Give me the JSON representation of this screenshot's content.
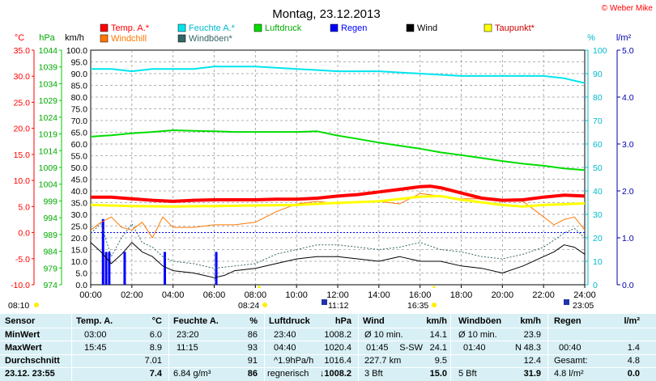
{
  "header": {
    "title": "Montag, 23.12.2013",
    "copyright": "© Weber Mike"
  },
  "colors": {
    "temp": "#ff0000",
    "humidity": "#00e5ee",
    "pressure": "#00dd00",
    "rain": "#0000ff",
    "wind": "#000000",
    "dewpoint": "#ffff00",
    "windchill": "#ff7700",
    "gust": "#336666"
  },
  "legend": [
    {
      "label": "Temp. A.*",
      "color": "#ff0000"
    },
    {
      "label": "Feuchte A.*",
      "color": "#00e5ee"
    },
    {
      "label": "Luftdruck",
      "color": "#00dd00"
    },
    {
      "label": "Regen",
      "color": "#0000ff"
    },
    {
      "label": "Wind",
      "color": "#000000"
    },
    {
      "label": "Taupunkt*",
      "color": "#ffff00"
    },
    {
      "label": "Windchill",
      "color": "#ff7700"
    },
    {
      "label": "Windböen*",
      "color": "#336666"
    }
  ],
  "chart_data": {
    "type": "line",
    "title": "Montag, 23.12.2013",
    "x_ticks": [
      "00:00",
      "02:00",
      "04:00",
      "06:00",
      "08:00",
      "10:00",
      "12:00",
      "14:00",
      "16:00",
      "18:00",
      "20:00",
      "22:00",
      "24:00"
    ],
    "xlim": [
      0,
      24
    ],
    "axes": {
      "temp": {
        "label": "°C",
        "ticks": [
          "35.0",
          "30.0",
          "25.0",
          "20.0",
          "15.0",
          "10.0",
          "5.0",
          "0.0",
          "-5.0",
          "-10.0"
        ],
        "ylim": [
          -10,
          35
        ]
      },
      "pressure": {
        "label": "hPa",
        "ticks": [
          "1044",
          "1039",
          "1034",
          "1029",
          "1024",
          "1019",
          "1014",
          "1009",
          "1004",
          "999",
          "994",
          "989",
          "984",
          "979",
          "974"
        ],
        "ylim": [
          974,
          1044
        ]
      },
      "wind": {
        "label": "km/h",
        "ticks": [
          "100.0",
          "95.0",
          "90.0",
          "85.0",
          "80.0",
          "75.0",
          "70.0",
          "65.0",
          "60.0",
          "55.0",
          "50.0",
          "45.0",
          "40.0",
          "35.0",
          "30.0",
          "25.0",
          "20.0",
          "15.0",
          "10.0",
          "5.0",
          "0.0"
        ],
        "ylim": [
          0,
          100
        ]
      },
      "humidity": {
        "label": "%",
        "ticks": [
          "100",
          "90",
          "80",
          "70",
          "60",
          "50",
          "40",
          "30",
          "20",
          "10",
          "0"
        ],
        "ylim": [
          0,
          100
        ]
      },
      "rain": {
        "label": "l/m²",
        "ticks": [
          "5.0",
          "4.0",
          "3.0",
          "2.0",
          "1.0",
          "0.0"
        ],
        "ylim": [
          0,
          5
        ]
      }
    },
    "series": [
      {
        "name": "Temp. A.*",
        "axis": "temp",
        "x": [
          0,
          1,
          2,
          3,
          4,
          5,
          6,
          7,
          8,
          9,
          10,
          11,
          12,
          13,
          14,
          15,
          16,
          16.5,
          17,
          18,
          19,
          20,
          21,
          22,
          23,
          24
        ],
        "values": [
          6.8,
          6.8,
          6.5,
          6.2,
          6.0,
          6.2,
          6.3,
          6.3,
          6.3,
          6.4,
          6.4,
          6.6,
          7.0,
          7.3,
          7.8,
          8.3,
          8.8,
          8.9,
          8.6,
          7.6,
          6.6,
          6.2,
          6.3,
          6.8,
          7.2,
          7.0
        ]
      },
      {
        "name": "Feuchte A.*",
        "axis": "humidity",
        "x": [
          0,
          1,
          2,
          3,
          4,
          5,
          6,
          8,
          10,
          12,
          13,
          14,
          16,
          18,
          20,
          21,
          22,
          23,
          24
        ],
        "values": [
          92,
          92,
          91,
          92,
          92,
          92,
          93,
          93,
          92,
          91,
          91,
          91,
          90,
          89,
          89,
          89,
          89,
          88,
          86
        ]
      },
      {
        "name": "Luftdruck",
        "axis": "pressure",
        "x": [
          0,
          1,
          2,
          3,
          4,
          5,
          6,
          7,
          8,
          9,
          10,
          11,
          12,
          13,
          14,
          15,
          16,
          17,
          18,
          19,
          20,
          21,
          22,
          23,
          24
        ],
        "values": [
          1018.2,
          1018.6,
          1019.2,
          1019.6,
          1020.1,
          1019.9,
          1019.8,
          1019.6,
          1019.6,
          1019.6,
          1019.6,
          1019.8,
          1018.5,
          1017.5,
          1016.4,
          1015.5,
          1014.6,
          1013.5,
          1012.7,
          1011.8,
          1010.9,
          1010.1,
          1009.5,
          1008.7,
          1008.2
        ]
      },
      {
        "name": "Taupunkt*",
        "axis": "temp",
        "x": [
          0,
          2,
          4,
          6,
          8,
          10,
          12,
          14,
          16,
          17,
          18,
          20,
          21,
          22,
          24
        ],
        "values": [
          5.3,
          5.1,
          5.0,
          5.1,
          5.2,
          5.3,
          5.7,
          6.0,
          6.9,
          7.0,
          6.3,
          5.3,
          5.0,
          5.3,
          5.6
        ]
      },
      {
        "name": "Windchill",
        "axis": "temp",
        "x": [
          0,
          0.5,
          1,
          1.5,
          2,
          2.5,
          3,
          3.5,
          4,
          5,
          6,
          7,
          8,
          9,
          10,
          11,
          12,
          13,
          14,
          15,
          16,
          17,
          18,
          19,
          20,
          21,
          22,
          22.5,
          23,
          23.5,
          24
        ],
        "values": [
          0.5,
          2,
          3,
          1,
          0.5,
          2,
          -1,
          3,
          1,
          1,
          1.5,
          1.5,
          2,
          4,
          5.5,
          6,
          5.5,
          6,
          6,
          5.5,
          7.5,
          7,
          6.5,
          6.5,
          6,
          6,
          3,
          1.5,
          2.5,
          3,
          0.5
        ]
      },
      {
        "name": "Wind",
        "axis": "wind",
        "x": [
          0,
          0.5,
          1,
          1.5,
          2,
          2.5,
          3,
          3.5,
          4,
          5,
          6,
          6.5,
          7,
          8,
          9,
          10,
          11,
          12,
          13,
          14,
          15,
          16,
          17,
          18,
          19,
          20,
          21,
          22,
          22.5,
          23,
          23.5,
          24
        ],
        "values": [
          18,
          14,
          9,
          13,
          18,
          14,
          12,
          8,
          6,
          5,
          3,
          4,
          6,
          7,
          9,
          11,
          12,
          12,
          11,
          10,
          12,
          10,
          10,
          8,
          7,
          5,
          8,
          12,
          14,
          17,
          16,
          13
        ]
      },
      {
        "name": "Windböen*",
        "axis": "wind",
        "x": [
          0,
          0.5,
          1,
          1.5,
          2,
          2.5,
          3,
          3.5,
          4,
          5,
          6,
          7,
          8,
          9,
          10,
          11,
          12,
          13,
          14,
          15,
          16,
          17,
          18,
          19,
          20,
          21,
          22,
          22.5,
          23,
          23.5,
          24
        ],
        "values": [
          22,
          26,
          12,
          20,
          26,
          18,
          16,
          12,
          10,
          9,
          7,
          8,
          9,
          13,
          15,
          17,
          17,
          16,
          15,
          16,
          18,
          15,
          14,
          12,
          11,
          13,
          16,
          19,
          22,
          24,
          20
        ]
      },
      {
        "name": "Regen",
        "axis": "rain",
        "type": "bar",
        "x": [
          0.6,
          0.75,
          0.9,
          1.65,
          3.6,
          6.1
        ],
        "values": [
          1.4,
          0.7,
          0.7,
          0.7,
          0.7,
          0.7
        ]
      }
    ]
  },
  "annotations": {
    "sunrise": "08:10",
    "sunset": "16:35",
    "sun_noon": "08:24",
    "moonrise": "11:12",
    "moonset": "23:05"
  },
  "table": {
    "headers": {
      "sensor": "Sensor",
      "temp": "Temp. A.",
      "temp_unit": "°C",
      "hum": "Feuchte A.",
      "hum_unit": "%",
      "press": "Luftdruck",
      "press_unit": "hPa",
      "wind": "Wind",
      "wind_unit": "km/h",
      "gust": "Windböen",
      "gust_unit": "km/h",
      "rain": "Regen",
      "rain_unit": "l/m²"
    },
    "rows": [
      {
        "label": "MinWert",
        "temp_time": "03:00",
        "temp": "6.0",
        "hum_time": "23:20",
        "hum": "86",
        "press_time": "23:40",
        "press": "1008.2",
        "wind_desc": "Ø 10 min.",
        "wind": "14.1",
        "gust_desc": "Ø 10 min.",
        "gust": "23.9",
        "rain_desc": "",
        "rain": ""
      },
      {
        "label": "MaxWert",
        "temp_time": "15:45",
        "temp": "8.9",
        "hum_time": "11:15",
        "hum": "93",
        "press_time": "04:40",
        "press": "1020.4",
        "wind_time": "01:45",
        "wind_dir": "S-SW",
        "wind": "24.1",
        "gust_time": "01:40",
        "gust_dir": "N",
        "gust": "48.3",
        "rain_time": "00:40",
        "rain": "1.4"
      },
      {
        "label": "Durchschnitt",
        "temp_time": "",
        "temp": "7.01",
        "hum_time": "",
        "hum": "91",
        "press_time": "^1.9hPa/h",
        "press": "1016.4",
        "wind_desc": "227.7 km",
        "wind": "9.5",
        "gust_desc": "",
        "gust": "12.4",
        "rain_desc": "Gesamt:",
        "rain": "4.8"
      },
      {
        "label": "23.12. 23:55",
        "temp_time": "",
        "temp": "7.4",
        "hum_time": "6.84 g/m³",
        "hum": "86",
        "press_time": "regnerisch",
        "press": "↓1008.2",
        "wind_desc": "3 Bft",
        "wind": "15.0",
        "gust_desc": "5 Bft",
        "gust": "31.9",
        "rain_desc": "4.8 l/m²",
        "rain": "0.0"
      }
    ]
  }
}
